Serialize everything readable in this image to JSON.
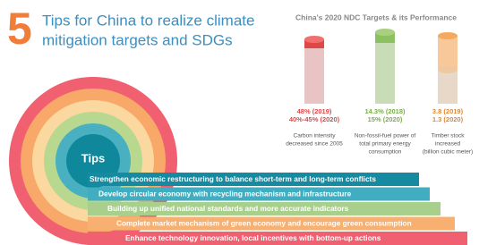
{
  "header": {
    "number": "5",
    "title_lines": [
      "Tips for China to realize climate",
      "mitigation targets and SDGs"
    ]
  },
  "panel": {
    "title": "China's 2020 NDC Targets & its Performance",
    "indicators": [
      {
        "values": [
          "48%  (2019)",
          "40%-45% (2020)"
        ],
        "description": [
          "Carbon intensity",
          "decreased since 2005"
        ]
      },
      {
        "values": [
          "14.3% (2018)",
          "15%   (2020)"
        ],
        "description": [
          "Non-fossil-fuel power of",
          "total primary energy",
          "consumption"
        ]
      },
      {
        "values": [
          "3.8 (2019)",
          "1.3 (2020)"
        ],
        "description": [
          "Timber stock",
          "increased",
          "(billion cubic meter)"
        ]
      }
    ]
  },
  "tips": {
    "center": "Tips",
    "items": [
      "Strengthen economic restructuring to balance short-term and long-term conflicts",
      "Develop circular economy with recycling mechanism and infrastructure",
      "Building up unified national standards and more accurate indicators",
      "Complete market mechanism of green economy and encourage green consumption",
      "Enhance technology innovation, local incentives with bottom-up actions"
    ]
  }
}
